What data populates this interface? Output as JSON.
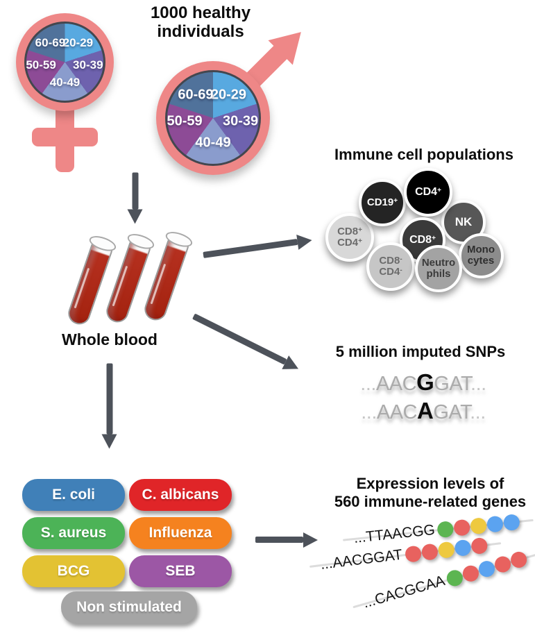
{
  "cohort": {
    "title": "1000 healthy individuals",
    "age_groups": [
      {
        "label": "20-29",
        "color": "#58a9e0"
      },
      {
        "label": "30-39",
        "color": "#6e62ae"
      },
      {
        "label": "40-49",
        "color": "#8a9ccd"
      },
      {
        "label": "50-59",
        "color": "#8d4b96"
      },
      {
        "label": "60-69",
        "color": "#50729b"
      }
    ]
  },
  "colors": {
    "symbol_pink": "#ee8787",
    "arrow_gray": "#4d525a",
    "blood_red": "#b02a1e",
    "pie_border": "#43474f"
  },
  "whole_blood": {
    "label": "Whole blood"
  },
  "immune_cells": {
    "title": "Immune cell populations",
    "cells": [
      {
        "name": "cd8pos-cd4pos",
        "lines": [
          {
            "base": "CD8",
            "sup": "+"
          },
          {
            "base": "CD4",
            "sup": "+"
          }
        ],
        "bg": "#d8d8d8",
        "fg": "#6b6b6b"
      },
      {
        "name": "cd19pos",
        "lines": [
          {
            "base": "CD19",
            "sup": "+"
          }
        ],
        "bg": "#242424",
        "fg": "#ffffff"
      },
      {
        "name": "nk",
        "lines": [
          {
            "base": "NK",
            "sup": ""
          }
        ],
        "bg": "#575757",
        "fg": "#ffffff"
      },
      {
        "name": "cd4pos",
        "lines": [
          {
            "base": "CD4",
            "sup": "+"
          }
        ],
        "bg": "#000000",
        "fg": "#ffffff"
      },
      {
        "name": "cd8pos",
        "lines": [
          {
            "base": "CD8",
            "sup": "+"
          }
        ],
        "bg": "#3a3a3a",
        "fg": "#ffffff"
      },
      {
        "name": "monocytes",
        "lines": [
          {
            "base": "Mono",
            "sup": ""
          },
          {
            "base": "cytes",
            "sup": ""
          }
        ],
        "bg": "#8c8c8c",
        "fg": "#2e2e2e"
      },
      {
        "name": "cd8neg-cd4neg",
        "lines": [
          {
            "base": "CD8",
            "sup": "-"
          },
          {
            "base": "CD4",
            "sup": "-"
          }
        ],
        "bg": "#c6c6c6",
        "fg": "#6b6b6b"
      },
      {
        "name": "neutrophils",
        "lines": [
          {
            "base": "Neutro",
            "sup": ""
          },
          {
            "base": "phils",
            "sup": ""
          }
        ],
        "bg": "#a3a3a3",
        "fg": "#3b3b3b"
      }
    ]
  },
  "snps": {
    "title": "5 million imputed SNPs",
    "sequences": [
      {
        "prefix": "...",
        "before": "AAC",
        "variant": "G",
        "after": "GAT",
        "suffix": "..."
      },
      {
        "prefix": "...",
        "before": "AAC",
        "variant": "A",
        "after": "GAT",
        "suffix": "..."
      }
    ]
  },
  "stimuli": {
    "items": [
      {
        "label": "E. coli",
        "color": "#4080b8"
      },
      {
        "label": "C. albicans",
        "color": "#e02528"
      },
      {
        "label": "S. aureus",
        "color": "#4cb357"
      },
      {
        "label": "Influenza",
        "color": "#f5821f"
      },
      {
        "label": "BCG",
        "color": "#e3c233"
      },
      {
        "label": "SEB",
        "color": "#9c57a5"
      },
      {
        "label": "Non stimulated",
        "color": "#a5a5a5"
      }
    ]
  },
  "expression": {
    "title_line1": "Expression levels of",
    "title_line2": "560 immune-related genes",
    "dot_colors": {
      "green": "#5cb551",
      "red": "#e8625f",
      "yellow": "#eec93f",
      "blue": "#5ba3f0"
    },
    "rows": [
      {
        "sequence": "...TTAACGG",
        "dots": [
          "green",
          "red",
          "yellow",
          "blue",
          "blue"
        ]
      },
      {
        "sequence": "...AACGGAT",
        "dots": [
          "red",
          "red",
          "yellow",
          "blue",
          "red"
        ]
      },
      {
        "sequence": "...CACGCAA",
        "dots": [
          "green",
          "red",
          "blue",
          "red",
          "red"
        ]
      }
    ]
  }
}
